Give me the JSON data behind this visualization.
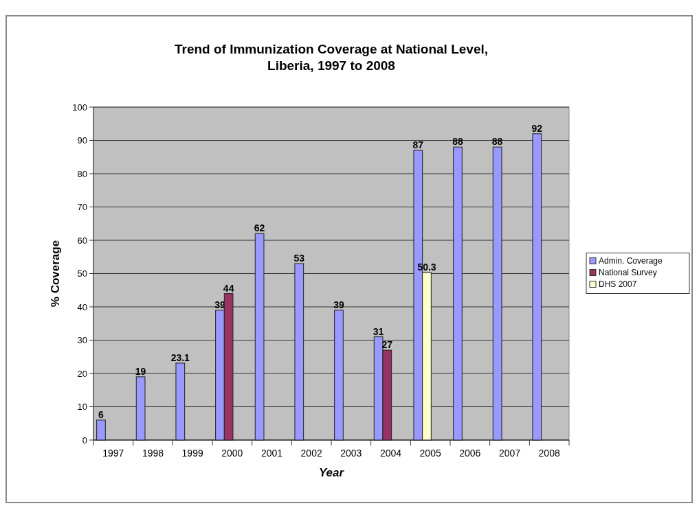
{
  "chart_data": {
    "type": "bar",
    "title": "Trend of Immunization Coverage at National Level,\nLiberia, 1997 to 2008",
    "xlabel": "Year",
    "ylabel": "% Coverage",
    "categories": [
      "1997",
      "1998",
      "1999",
      "2000",
      "2001",
      "2002",
      "2003",
      "2004",
      "2005",
      "2006",
      "2007",
      "2008"
    ],
    "series": [
      {
        "name": "Admin. Coverage",
        "color": "#9999ff",
        "values": [
          6,
          19,
          23.1,
          39,
          62,
          53,
          39,
          31,
          87,
          88,
          88,
          92
        ]
      },
      {
        "name": "National Survey",
        "color": "#993366",
        "values": [
          null,
          null,
          null,
          44,
          null,
          null,
          null,
          27,
          null,
          null,
          null,
          null
        ]
      },
      {
        "name": "DHS 2007",
        "color": "#ffffcc",
        "values": [
          null,
          null,
          null,
          null,
          null,
          null,
          null,
          null,
          50.3,
          null,
          null,
          null
        ]
      }
    ],
    "ylim": [
      0,
      100
    ],
    "yticks": [
      0,
      10,
      20,
      30,
      40,
      50,
      60,
      70,
      80,
      90,
      100
    ],
    "grid": "y",
    "legend": "right",
    "data_labels": true
  }
}
